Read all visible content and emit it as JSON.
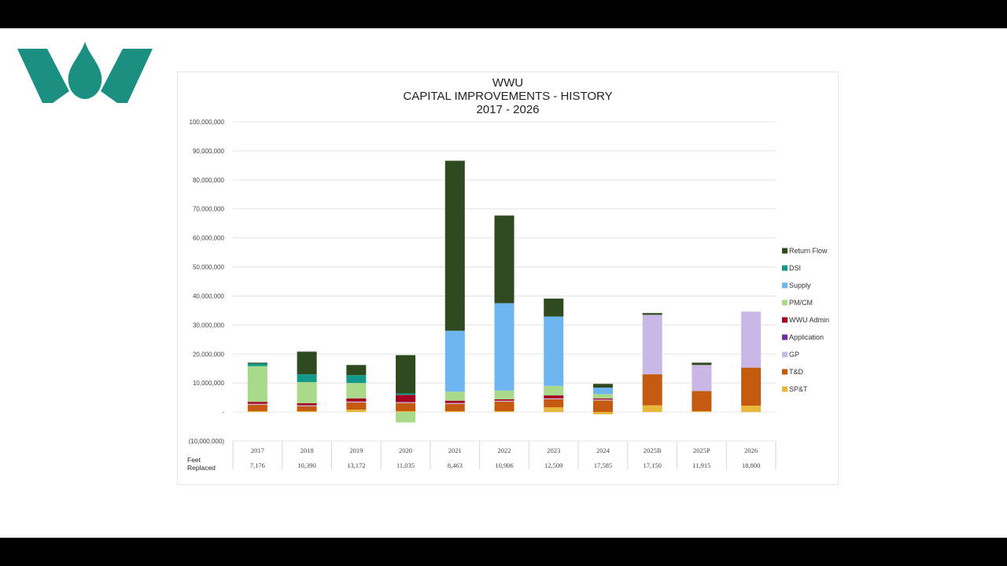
{
  "chart_data": {
    "type": "bar",
    "stacked": true,
    "title_lines": [
      "WWU",
      "CAPITAL IMPROVEMENTS - HISTORY",
      "2017 - 2026"
    ],
    "categories": [
      "2017",
      "2018",
      "2019",
      "2020",
      "2021",
      "2022",
      "2023",
      "2024",
      "2025B",
      "2025P",
      "2026"
    ],
    "ylim": [
      -10000000,
      100000000
    ],
    "yticks": [
      -10000000,
      0,
      10000000,
      20000000,
      30000000,
      40000000,
      50000000,
      60000000,
      70000000,
      80000000,
      90000000,
      100000000
    ],
    "ytick_labels": [
      "(10,000,000)",
      "-",
      "10,000,000",
      "20,000,000",
      "30,000,000",
      "40,000,000",
      "50,000,000",
      "60,000,000",
      "70,000,000",
      "80,000,000",
      "90,000,000",
      "100,000,000"
    ],
    "gridlines": true,
    "legend_position": "right",
    "series": [
      {
        "name": "SP&T",
        "color": "#E8B83A",
        "values": [
          300000,
          300000,
          800000,
          300000,
          300000,
          300000,
          1600000,
          -800000,
          2300000,
          300000,
          2200000
        ]
      },
      {
        "name": "T&D",
        "color": "#C55A11",
        "values": [
          2200000,
          1700000,
          2500000,
          2800000,
          2500000,
          3300000,
          2800000,
          4000000,
          10700000,
          6900000,
          13100000
        ]
      },
      {
        "name": "GP",
        "color": "#C9B8E6",
        "values": [
          300000,
          300000,
          300000,
          300000,
          300000,
          300000,
          300000,
          300000,
          20500000,
          9000000,
          19300000
        ]
      },
      {
        "name": "Application",
        "color": "#7030A0",
        "values": [
          0,
          0,
          0,
          0,
          0,
          0,
          0,
          0,
          0,
          0,
          0
        ]
      },
      {
        "name": "WWU Admin",
        "color": "#A50021",
        "values": [
          700000,
          700000,
          1100000,
          2500000,
          800000,
          500000,
          1000000,
          400000,
          0,
          0,
          0
        ]
      },
      {
        "name": "PM/CM",
        "color": "#A9D98B",
        "values": [
          12300000,
          7300000,
          5300000,
          -3600000,
          3100000,
          3000000,
          3300000,
          1500000,
          0,
          0,
          0
        ]
      },
      {
        "name": "Supply",
        "color": "#6DB6F2",
        "values": [
          0,
          0,
          0,
          0,
          21000000,
          30100000,
          23900000,
          2200000,
          0,
          0,
          0
        ]
      },
      {
        "name": "DSI",
        "color": "#12998A",
        "values": [
          900000,
          2700000,
          2700000,
          500000,
          0,
          0,
          0,
          0,
          0,
          0,
          0
        ]
      },
      {
        "name": "Return Flow",
        "color": "#2E4A1E",
        "values": [
          300000,
          7800000,
          3500000,
          13200000,
          58600000,
          30200000,
          6200000,
          1300000,
          600000,
          800000,
          0
        ]
      }
    ],
    "extra_row": {
      "label": [
        "Feet",
        "Replaced"
      ],
      "values": [
        "7,176",
        "10,390",
        "13,172",
        "11,035",
        "8,463",
        "10,906",
        "12,509",
        "17,585",
        "17,150",
        "11,915",
        "18,800"
      ]
    }
  },
  "logo": {
    "name": "WWU logo",
    "color": "#1A8F82"
  }
}
